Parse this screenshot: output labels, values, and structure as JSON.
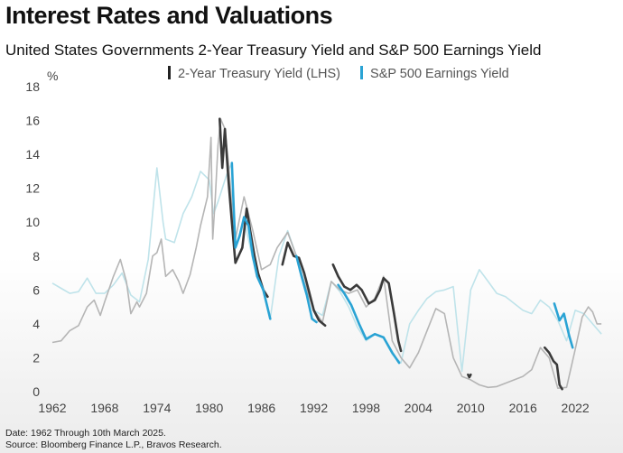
{
  "chart_data": {
    "type": "line",
    "title": "Interest Rates and Valuations",
    "subtitle": "United States Governments 2-Year Treasury Yield  and S&P 500 Earnings Yield",
    "ylabel": "%",
    "xlabel": "",
    "xlim": [
      1962,
      2025.2
    ],
    "ylim": [
      0,
      18
    ],
    "x_ticks": [
      1962,
      1968,
      1974,
      1980,
      1986,
      1992,
      1998,
      2004,
      2010,
      2016,
      2022
    ],
    "y_ticks": [
      0,
      2,
      4,
      6,
      8,
      10,
      12,
      14,
      16,
      18
    ],
    "grid": false,
    "legend_position": "top-center",
    "series": [
      {
        "name": "2-Year Treasury Yield (LHS)",
        "color": "#b5b5b5",
        "points": [
          [
            1962,
            2.9
          ],
          [
            1963,
            3.0
          ],
          [
            1964,
            3.6
          ],
          [
            1965,
            3.9
          ],
          [
            1966,
            5.0
          ],
          [
            1966.8,
            5.4
          ],
          [
            1967.5,
            4.5
          ],
          [
            1968,
            5.3
          ],
          [
            1969,
            6.8
          ],
          [
            1969.8,
            7.8
          ],
          [
            1970.5,
            6.5
          ],
          [
            1971,
            4.6
          ],
          [
            1971.7,
            5.3
          ],
          [
            1972,
            5.0
          ],
          [
            1972.8,
            5.8
          ],
          [
            1973.5,
            8.0
          ],
          [
            1974,
            8.2
          ],
          [
            1974.5,
            9.0
          ],
          [
            1975,
            6.8
          ],
          [
            1975.8,
            7.2
          ],
          [
            1976.5,
            6.5
          ],
          [
            1977,
            5.8
          ],
          [
            1977.8,
            6.9
          ],
          [
            1978.5,
            8.5
          ],
          [
            1979,
            9.8
          ],
          [
            1979.8,
            11.5
          ],
          [
            1980.2,
            15.0
          ],
          [
            1980.4,
            9.0
          ],
          [
            1980.7,
            11.5
          ],
          [
            1981,
            14.5
          ],
          [
            1981.3,
            16.1
          ],
          [
            1981.8,
            15.5
          ],
          [
            1982.2,
            13.5
          ],
          [
            1982.6,
            11.0
          ],
          [
            1983,
            9.0
          ],
          [
            1984,
            11.5
          ],
          [
            1985,
            9.5
          ],
          [
            1986,
            7.2
          ],
          [
            1987,
            7.5
          ],
          [
            1987.8,
            8.5
          ],
          [
            1989,
            9.4
          ],
          [
            1990,
            8.0
          ],
          [
            1991,
            6.3
          ],
          [
            1992,
            4.8
          ],
          [
            1993,
            4.1
          ],
          [
            1994,
            6.5
          ],
          [
            1995,
            6.0
          ],
          [
            1996,
            5.8
          ],
          [
            1997,
            6.0
          ],
          [
            1998,
            5.0
          ],
          [
            1999,
            5.5
          ],
          [
            2000,
            6.8
          ],
          [
            2001,
            3.0
          ],
          [
            2002,
            2.0
          ],
          [
            2003,
            1.4
          ],
          [
            2004,
            2.3
          ],
          [
            2005,
            3.6
          ],
          [
            2006,
            4.9
          ],
          [
            2007,
            4.6
          ],
          [
            2008,
            2.0
          ],
          [
            2009,
            0.9
          ],
          [
            2010,
            0.7
          ],
          [
            2011,
            0.4
          ],
          [
            2012,
            0.25
          ],
          [
            2013,
            0.3
          ],
          [
            2014,
            0.5
          ],
          [
            2015,
            0.7
          ],
          [
            2016,
            0.9
          ],
          [
            2017,
            1.3
          ],
          [
            2018,
            2.6
          ],
          [
            2019,
            2.0
          ],
          [
            2020,
            0.2
          ],
          [
            2021,
            0.25
          ],
          [
            2022,
            2.5
          ],
          [
            2022.8,
            4.4
          ],
          [
            2023.5,
            5.0
          ],
          [
            2024,
            4.7
          ],
          [
            2024.5,
            4.0
          ],
          [
            2025,
            4.0
          ]
        ]
      },
      {
        "name": "S&P 500 Earnings Yield",
        "color": "#2aa3d4",
        "points": [
          [
            1962,
            6.4
          ],
          [
            1963,
            6.1
          ],
          [
            1964,
            5.8
          ],
          [
            1965,
            5.9
          ],
          [
            1966,
            6.7
          ],
          [
            1967,
            5.8
          ],
          [
            1968,
            5.8
          ],
          [
            1969,
            6.3
          ],
          [
            1970,
            7.0
          ],
          [
            1971,
            5.7
          ],
          [
            1972,
            5.3
          ],
          [
            1973,
            7.8
          ],
          [
            1974,
            13.2
          ],
          [
            1974.7,
            10.0
          ],
          [
            1975,
            9.0
          ],
          [
            1976,
            8.8
          ],
          [
            1977,
            10.5
          ],
          [
            1978,
            11.5
          ],
          [
            1979,
            13.0
          ],
          [
            1980,
            12.5
          ],
          [
            1980.5,
            10.5
          ],
          [
            1981,
            11.2
          ],
          [
            1982,
            12.8
          ],
          [
            1982.6,
            13.5
          ],
          [
            1983,
            8.5
          ],
          [
            1984,
            10.2
          ],
          [
            1985,
            7.8
          ],
          [
            1986,
            6.3
          ],
          [
            1987,
            4.3
          ],
          [
            1988,
            8.0
          ],
          [
            1989,
            9.5
          ],
          [
            1990,
            8.0
          ],
          [
            1991,
            6.3
          ],
          [
            1992,
            4.8
          ],
          [
            1993,
            4.5
          ],
          [
            1994,
            6.5
          ],
          [
            1995,
            5.9
          ],
          [
            1996,
            5.0
          ],
          [
            1997,
            3.8
          ],
          [
            1998,
            3.0
          ],
          [
            1999,
            3.4
          ],
          [
            2000,
            3.2
          ],
          [
            2001,
            2.2
          ],
          [
            2002,
            1.7
          ],
          [
            2003,
            4.0
          ],
          [
            2004,
            4.8
          ],
          [
            2005,
            5.5
          ],
          [
            2006,
            5.9
          ],
          [
            2007,
            6.0
          ],
          [
            2008,
            6.2
          ],
          [
            2009,
            1.2
          ],
          [
            2010,
            6.0
          ],
          [
            2011,
            7.2
          ],
          [
            2012,
            6.5
          ],
          [
            2013,
            5.8
          ],
          [
            2014,
            5.6
          ],
          [
            2015,
            5.2
          ],
          [
            2016,
            4.8
          ],
          [
            2017,
            4.6
          ],
          [
            2018,
            5.4
          ],
          [
            2019,
            5.0
          ],
          [
            2020,
            4.2
          ],
          [
            2021,
            3.0
          ],
          [
            2022,
            4.8
          ],
          [
            2023,
            4.6
          ],
          [
            2024,
            4.0
          ],
          [
            2025,
            3.4
          ]
        ]
      }
    ],
    "highlight_segments": [
      {
        "series": "2-Year Treasury Yield (LHS)",
        "color": "#3a3a3a",
        "points": [
          [
            1981.2,
            16.1
          ],
          [
            1981.5,
            13.2
          ],
          [
            1981.8,
            15.5
          ],
          [
            1982.2,
            12.5
          ],
          [
            1982.6,
            10.0
          ],
          [
            1983,
            7.6
          ],
          [
            1983.8,
            8.5
          ],
          [
            1984.3,
            10.8
          ],
          [
            1984.7,
            9.5
          ],
          [
            1985.2,
            8.0
          ],
          [
            1985.6,
            7.0
          ],
          [
            1986.2,
            6.0
          ],
          [
            1986.7,
            5.6
          ]
        ]
      },
      {
        "series": "2-Year Treasury Yield (LHS)",
        "color": "#3a3a3a",
        "points": [
          [
            1988.4,
            7.5
          ],
          [
            1989,
            8.8
          ],
          [
            1989.7,
            8.0
          ],
          [
            1990.3,
            7.9
          ],
          [
            1990.9,
            7.0
          ],
          [
            1991.4,
            6.0
          ],
          [
            1992,
            4.8
          ],
          [
            1992.6,
            4.2
          ],
          [
            1993.3,
            3.9
          ]
        ]
      },
      {
        "series": "2-Year Treasury Yield (LHS)",
        "color": "#3a3a3a",
        "points": [
          [
            1994.2,
            7.5
          ],
          [
            1994.8,
            6.8
          ],
          [
            1995.5,
            6.2
          ],
          [
            1996.2,
            6.0
          ],
          [
            1996.9,
            6.3
          ],
          [
            1997.5,
            6.0
          ],
          [
            1998.3,
            5.2
          ],
          [
            1999,
            5.4
          ],
          [
            1999.6,
            6.0
          ],
          [
            2000,
            6.7
          ],
          [
            2000.6,
            6.4
          ],
          [
            2001.2,
            4.6
          ],
          [
            2001.7,
            3.0
          ],
          [
            2002,
            2.4
          ]
        ]
      },
      {
        "series": "2-Year Treasury Yield (LHS)",
        "color": "#3a3a3a",
        "points": [
          [
            2009.7,
            1.0
          ],
          [
            2009.85,
            0.85
          ],
          [
            2010,
            1.0
          ]
        ]
      },
      {
        "series": "2-Year Treasury Yield (LHS)",
        "color": "#3a3a3a",
        "points": [
          [
            2018.5,
            2.6
          ],
          [
            2019,
            2.3
          ],
          [
            2019.5,
            1.8
          ],
          [
            2019.9,
            1.6
          ],
          [
            2020.2,
            0.4
          ],
          [
            2020.5,
            0.15
          ]
        ]
      },
      {
        "series": "S&P 500 Earnings Yield",
        "color": "#2aa3d4",
        "points": [
          [
            1982.6,
            13.5
          ],
          [
            1983,
            8.5
          ],
          [
            1983.5,
            9.2
          ],
          [
            1984,
            10.3
          ],
          [
            1984.5,
            9.8
          ],
          [
            1985,
            8.0
          ],
          [
            1985.5,
            6.8
          ],
          [
            1986.2,
            6.0
          ],
          [
            1987,
            4.3
          ]
        ]
      },
      {
        "series": "S&P 500 Earnings Yield",
        "color": "#2aa3d4",
        "points": [
          [
            1990,
            8.0
          ],
          [
            1990.6,
            6.8
          ],
          [
            1991.2,
            5.7
          ],
          [
            1991.8,
            4.3
          ],
          [
            1992.3,
            4.1
          ]
        ]
      },
      {
        "series": "S&P 500 Earnings Yield",
        "color": "#2aa3d4",
        "points": [
          [
            1994.8,
            6.3
          ],
          [
            1995.5,
            5.8
          ],
          [
            1996.3,
            5.1
          ],
          [
            1997.2,
            4.0
          ],
          [
            1998,
            3.1
          ],
          [
            1999,
            3.4
          ],
          [
            2000,
            3.2
          ],
          [
            2001,
            2.3
          ],
          [
            2001.8,
            1.7
          ]
        ]
      },
      {
        "series": "S&P 500 Earnings Yield",
        "color": "#2aa3d4",
        "points": [
          [
            2019.6,
            5.2
          ],
          [
            2020.2,
            4.2
          ],
          [
            2020.7,
            4.6
          ],
          [
            2021.3,
            3.3
          ],
          [
            2021.7,
            2.6
          ]
        ]
      }
    ]
  },
  "footer": {
    "date_note": "Date: 1962 Through 10th March 2025.",
    "source_note": "Source: Bloomberg Finance L.P., Bravos Research."
  }
}
